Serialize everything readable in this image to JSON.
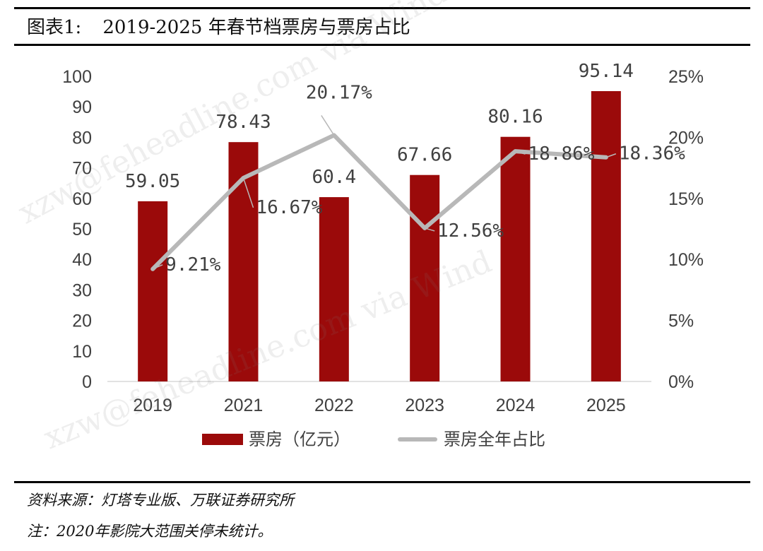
{
  "header": {
    "label": "图表1:",
    "title": "2019-2025 年春节档票房与票房占比"
  },
  "footer": {
    "source": "资料来源：灯塔专业版、万联证券研究所",
    "note": "注：2020年影院大范围关停未统计。"
  },
  "watermark": {
    "text1": "xzw@feheadline.com via Wind",
    "text2": "xzw@feheadline.com via Wind"
  },
  "colors": {
    "bar": "#9b0a0a",
    "line": "#b8b8b8",
    "axis": "#d9d9d9",
    "text": "#404040"
  },
  "chart_data": {
    "type": "bar",
    "categories": [
      "2019",
      "2021",
      "2022",
      "2023",
      "2024",
      "2025"
    ],
    "series": [
      {
        "name": "票房（亿元）",
        "type": "bar",
        "axis": "left",
        "values": [
          59.05,
          78.43,
          60.4,
          67.66,
          80.16,
          95.14
        ],
        "labels": [
          "59.05",
          "78.43",
          "60.4",
          "67.66",
          "80.16",
          "95.14"
        ]
      },
      {
        "name": "票房全年占比",
        "type": "line",
        "axis": "right",
        "values": [
          9.21,
          16.67,
          20.17,
          12.56,
          18.86,
          18.36
        ],
        "labels": [
          "9.21%",
          "16.67%",
          "20.17%",
          "12.56%",
          "18.86%",
          "18.36%"
        ]
      }
    ],
    "y_left": {
      "min": 0,
      "max": 100,
      "ticks": [
        "0",
        "10",
        "20",
        "30",
        "40",
        "50",
        "60",
        "70",
        "80",
        "90",
        "100"
      ]
    },
    "y_right": {
      "min": 0,
      "max": 25,
      "ticks": [
        "0%",
        "5%",
        "10%",
        "15%",
        "20%",
        "25%"
      ]
    },
    "legend_position": "bottom"
  }
}
